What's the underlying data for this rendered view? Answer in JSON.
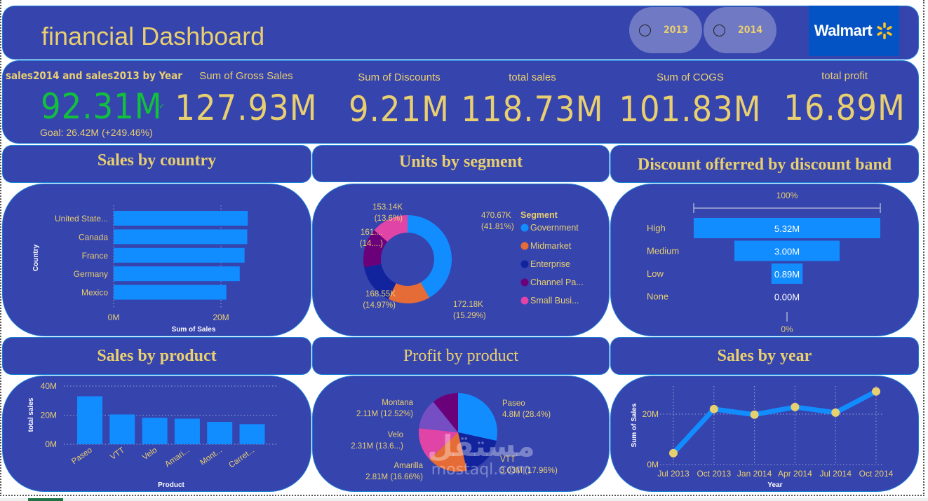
{
  "header": {
    "title": "financial Dashboard",
    "slicers": [
      {
        "label": "2013",
        "selected": false
      },
      {
        "label": "2014",
        "selected": false
      }
    ],
    "logo_text": "Walmart",
    "logo_icon": "spark-icon"
  },
  "kpis": {
    "goal_card": {
      "label": "sales2014 and sales2013 by Year",
      "value": "92.31M",
      "status_icon": "check-icon",
      "goal": "Goal: 26.42M (+249.46%)",
      "value_color": "#12c03e"
    },
    "cards": [
      {
        "label": "Sum of Gross Sales",
        "value": "127.93M"
      },
      {
        "label": "Sum of Discounts",
        "value": "9.21M"
      },
      {
        "label": "total sales",
        "value": "118.73M"
      },
      {
        "label": "Sum of COGS",
        "value": "101.83M"
      },
      {
        "label": "total profit",
        "value": "16.89M"
      }
    ]
  },
  "sections": {
    "sales_by_country": "Sales by country",
    "units_by_segment": "Units by segment",
    "discount_band": "Discount offerred by discount band",
    "sales_by_product": "Sales by product",
    "profit_by_product": "Profit by product",
    "sales_by_year": "Sales by year"
  },
  "colors": {
    "panel": "#3644ad",
    "accent_gold": "#e8cf70",
    "bar_blue": "#118dff",
    "government": "#118dff",
    "midmarket": "#e66c37",
    "enterprise": "#12239e",
    "channel_partners": "#6b007b",
    "small_business": "#e044a7",
    "montana_purple": "#744ec2"
  },
  "watermark": {
    "arabic": "مستقل",
    "latin": "mostaql.com"
  },
  "chart_data": [
    {
      "id": "sales_by_country",
      "type": "bar",
      "orientation": "horizontal",
      "title": "Sales by country",
      "categories": [
        "United State...",
        "Canada",
        "France",
        "Germany",
        "Mexico"
      ],
      "values": [
        25.0,
        24.9,
        24.4,
        23.5,
        21.0
      ],
      "unit": "M",
      "xlabel": "Sum of Sales",
      "ylabel": "Country",
      "xticks": [
        "0M",
        "20M"
      ],
      "xlim": [
        0,
        30
      ],
      "grid": true
    },
    {
      "id": "units_by_segment",
      "type": "pie",
      "donut": true,
      "title": "Units by segment",
      "legend_title": "Segment",
      "legend_position": "right",
      "slices": [
        {
          "name": "Government",
          "legend": "Government",
          "value": 470.67,
          "label": "470.67K",
          "pct": "(41.81%)",
          "color": "#118dff"
        },
        {
          "name": "Midmarket",
          "legend": "Midmarket",
          "value": 172.18,
          "label": "172.18K",
          "pct": "(15.29%)",
          "color": "#e66c37"
        },
        {
          "name": "Enterprise",
          "legend": "Enterprise",
          "value": 168.55,
          "label": "168.55K",
          "pct": "(14.97%)",
          "color": "#12239e"
        },
        {
          "name": "Channel Partners",
          "legend": "Channel Pa...",
          "value": 161.0,
          "label": "161....",
          "pct": "(14....)",
          "color": "#6b007b"
        },
        {
          "name": "Small Business",
          "legend": "Small Busi...",
          "value": 153.14,
          "label": "153.14K",
          "pct": "(13.6%)",
          "color": "#e044a7"
        }
      ],
      "unit": "K"
    },
    {
      "id": "discount_band",
      "type": "bar",
      "subtype": "funnel",
      "title": "Discount offerred by discount band",
      "categories": [
        "High",
        "Medium",
        "Low",
        "None"
      ],
      "values": [
        5.32,
        3.0,
        0.89,
        0.0
      ],
      "labels": [
        "5.32M",
        "3.00M",
        "0.89M",
        "0.00M"
      ],
      "top_label": "100%",
      "bottom_label": "0%",
      "unit": "M"
    },
    {
      "id": "sales_by_product",
      "type": "bar",
      "title": "Sales by product",
      "categories": [
        "Paseo",
        "VTT",
        "Velo",
        "Amari...",
        "Mont...",
        "Carret..."
      ],
      "values": [
        33.0,
        20.5,
        18.2,
        17.6,
        15.4,
        13.8
      ],
      "unit": "M",
      "xlabel": "Product",
      "ylabel": "total sales",
      "yticks": [
        "0M",
        "20M",
        "40M"
      ],
      "ylim": [
        0,
        40
      ],
      "grid": true
    },
    {
      "id": "profit_by_product",
      "type": "pie",
      "title": "Profit by product",
      "slices": [
        {
          "name": "Paseo",
          "value": 4.8,
          "label": "4.8M (28.4%)",
          "color": "#118dff"
        },
        {
          "name": "VTT",
          "value": 3.03,
          "label": "3.03M (17.96%)",
          "color": "#12239e"
        },
        {
          "name": "Amarilla",
          "value": 2.81,
          "label": "2.81M (16.66%)",
          "color": "#e66c37"
        },
        {
          "name": "Velo",
          "value": 2.31,
          "label": "2.31M (13.6...)",
          "color": "#e044a7"
        },
        {
          "name": "Montana",
          "value": 2.11,
          "label": "2.11M (12.52%)",
          "color": "#744ec2"
        },
        {
          "name": "Carretera",
          "value": 1.83,
          "label": "",
          "color": "#6b007b"
        }
      ],
      "unit": "M"
    },
    {
      "id": "sales_by_year",
      "type": "line",
      "title": "Sales by year",
      "x": [
        "Jul 2013",
        "Oct 2013",
        "Jan 2014",
        "Apr 2014",
        "Jul 2014",
        "Oct 2014"
      ],
      "values": [
        4.5,
        22.0,
        19.8,
        22.8,
        20.6,
        29.0
      ],
      "unit": "M",
      "xlabel": "Year",
      "ylabel": "Sum of Sales",
      "yticks": [
        "0M",
        "20M"
      ],
      "ylim": [
        0,
        30
      ],
      "grid": true
    }
  ]
}
